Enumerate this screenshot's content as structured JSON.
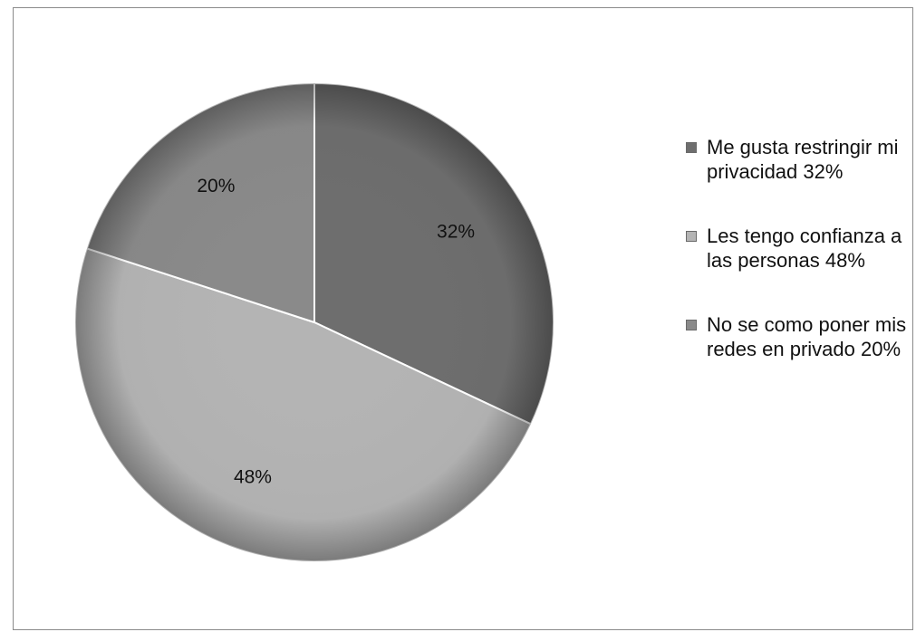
{
  "chart_data": {
    "type": "pie",
    "title": "",
    "slices": [
      {
        "label": "Me gusta restringir mi privacidad 32%",
        "value": 32,
        "data_label": "32%",
        "color": "#6e6e6e"
      },
      {
        "label": "Les tengo confianza a las personas 48%",
        "value": 48,
        "data_label": "48%",
        "color": "#b4b4b4"
      },
      {
        "label": "No se como poner mis redes en privado 20%",
        "value": 20,
        "data_label": "20%",
        "color": "#8a8a8a"
      }
    ],
    "legend_position": "right",
    "start_angle": "12 o'clock",
    "direction": "clockwise"
  }
}
